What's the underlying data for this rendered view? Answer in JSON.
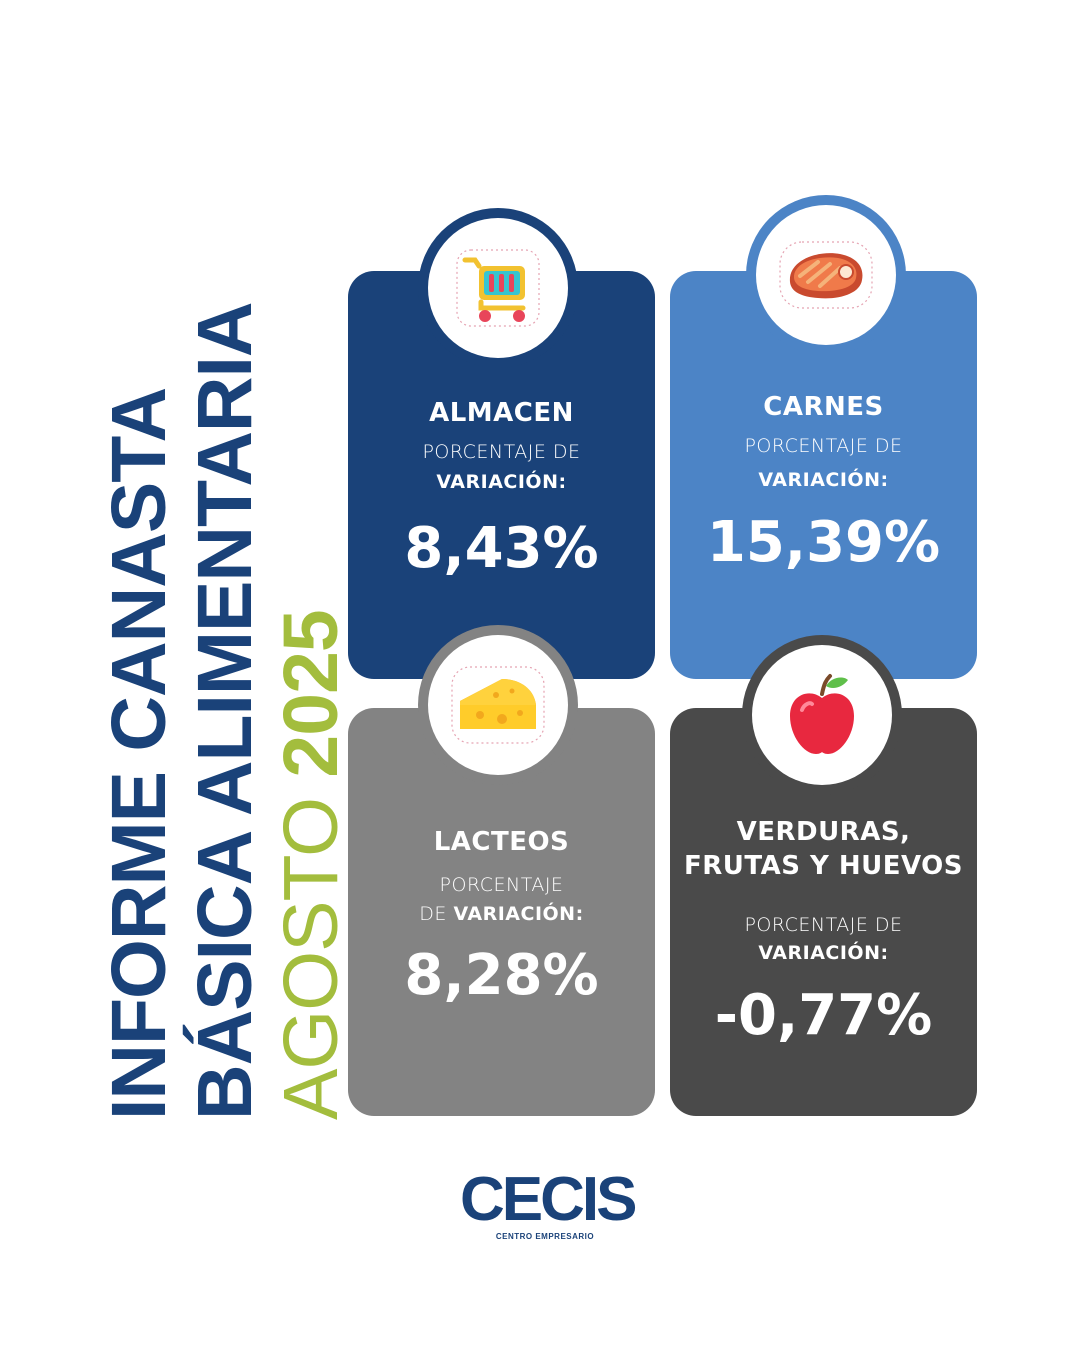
{
  "title": {
    "line1_a": "INFORME ",
    "line1_b": "CANASTA",
    "line2": "BÁSICA ALIMENTARIA",
    "line3_a": "AGOSTO ",
    "line3_b": "2025"
  },
  "cards": [
    {
      "name": "ALMACEN",
      "label_light": "PORCENTAJE DE",
      "label_bold": "VARIACIÓN:",
      "value": "8,43%",
      "icon": "shopping-cart-icon"
    },
    {
      "name": "CARNES",
      "label_light": "PORCENTAJE DE",
      "label_bold": "VARIACIÓN:",
      "value": "15,39%",
      "icon": "steak-icon"
    },
    {
      "name": "LACTEOS",
      "label_light": "PORCENTAJE",
      "label_light2": "DE ",
      "label_bold": "VARIACIÓN:",
      "value": "8,28%",
      "icon": "cheese-icon"
    },
    {
      "name_line1": "VERDURAS,",
      "name_line2": "FRUTAS Y HUEVOS",
      "label_light": "PORCENTAJE DE",
      "label_bold": "VARIACIÓN:",
      "value": "-0,77%",
      "icon": "apple-icon"
    }
  ],
  "logo": {
    "word": "CECIS",
    "subtitle": "CENTRO EMPRESARIO"
  },
  "colors": {
    "navy": "#1a4279",
    "blue": "#4c84c6",
    "gray": "#838383",
    "dark": "#4a4a4a",
    "green": "#a3bd3d"
  }
}
